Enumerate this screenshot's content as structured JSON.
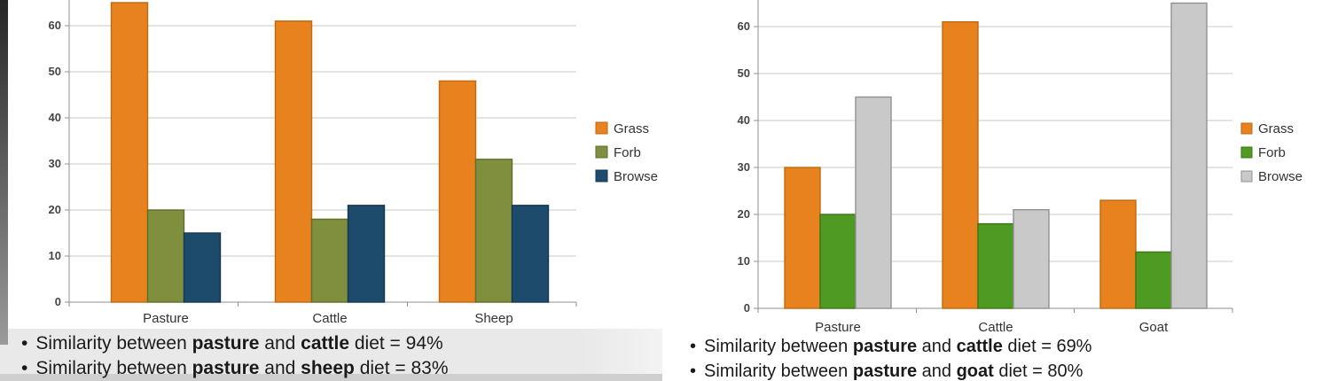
{
  "chart_data": [
    {
      "type": "bar",
      "title": "",
      "xlabel": "",
      "ylabel": "",
      "categories": [
        "Pasture",
        "Cattle",
        "Sheep"
      ],
      "series": [
        {
          "name": "Grass",
          "color": "#E8821E",
          "border_color": "#BF6A10",
          "values": [
            65,
            61,
            48
          ]
        },
        {
          "name": "Forb",
          "color": "#7F8F3E",
          "border_color": "#5F6E2C",
          "values": [
            20,
            18,
            31
          ]
        },
        {
          "name": "Browse",
          "color": "#1D4B6C",
          "border_color": "#143853",
          "values": [
            15,
            21,
            21
          ]
        }
      ],
      "y_ticks": [
        0,
        10,
        20,
        30,
        40,
        50,
        60
      ],
      "ylim": [
        0,
        66
      ],
      "grid": true,
      "legend_position": "right",
      "legend": [
        "Grass",
        "Forb",
        "Browse"
      ]
    },
    {
      "type": "bar",
      "title": "",
      "xlabel": "",
      "ylabel": "",
      "categories": [
        "Pasture",
        "Cattle",
        "Goat"
      ],
      "series": [
        {
          "name": "Grass",
          "color": "#E8821E",
          "border_color": "#BF6A10",
          "values": [
            30,
            61,
            23
          ]
        },
        {
          "name": "Forb",
          "color": "#4F9A22",
          "border_color": "#3B7717",
          "values": [
            20,
            18,
            12
          ]
        },
        {
          "name": "Browse",
          "color": "#C9C9C9",
          "border_color": "#919191",
          "values": [
            45,
            21,
            65
          ]
        }
      ],
      "y_ticks": [
        0,
        10,
        20,
        30,
        40,
        50,
        60
      ],
      "ylim": [
        0,
        66
      ],
      "grid": true,
      "legend_position": "right",
      "legend": [
        "Grass",
        "Forb",
        "Browse"
      ]
    }
  ],
  "notes": {
    "bullet": "•",
    "left": [
      {
        "segments": [
          {
            "t": "Similarity between ",
            "b": false
          },
          {
            "t": "pasture",
            "b": true
          },
          {
            "t": " and ",
            "b": false
          },
          {
            "t": "cattle",
            "b": true
          },
          {
            "t": " diet = 94%",
            "b": false
          }
        ]
      },
      {
        "segments": [
          {
            "t": "Similarity between ",
            "b": false
          },
          {
            "t": "pasture",
            "b": true
          },
          {
            "t": " and ",
            "b": false
          },
          {
            "t": "sheep",
            "b": true
          },
          {
            "t": " diet = 83%",
            "b": false
          }
        ]
      }
    ],
    "right": [
      {
        "segments": [
          {
            "t": "Similarity between ",
            "b": false
          },
          {
            "t": "pasture",
            "b": true
          },
          {
            "t": " and ",
            "b": false
          },
          {
            "t": "cattle",
            "b": true
          },
          {
            "t": " diet = 69%",
            "b": false
          }
        ]
      },
      {
        "segments": [
          {
            "t": "Similarity between ",
            "b": false
          },
          {
            "t": "pasture",
            "b": true
          },
          {
            "t": " and ",
            "b": false
          },
          {
            "t": "goat",
            "b": true
          },
          {
            "t": " diet = 80%",
            "b": false
          }
        ]
      }
    ]
  },
  "style_colors": {
    "gridline": "#c9c9c9",
    "axis": "#8f8f8f",
    "tick_label": "#454545",
    "category_label": "#333333",
    "legend_label": "#333333"
  }
}
